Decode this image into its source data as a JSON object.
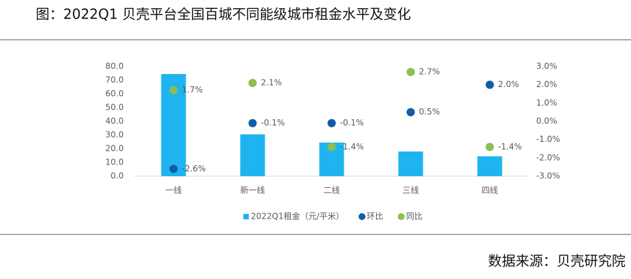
{
  "chart_data": {
    "type": "bar",
    "title": "图：2022Q1 贝壳平台全国百城不同能级城市租金水平及变化",
    "source": "数据来源：贝壳研究院",
    "categories": [
      "一线",
      "新一线",
      "二线",
      "三线",
      "四线"
    ],
    "series": [
      {
        "name": "2022Q1租金（元/平米）",
        "type": "bar",
        "color": "#1fb4f0",
        "values": [
          74.5,
          30.5,
          24.5,
          18,
          14.5
        ]
      },
      {
        "name": "环比",
        "type": "scatter",
        "axis": "y2",
        "color": "#0f5ea8",
        "values": [
          -2.6,
          -0.1,
          -0.1,
          0.5,
          2.0
        ],
        "value_labels": [
          "-2.6%",
          "-0.1%",
          "-0.1%",
          "0.5%",
          "2.0%"
        ]
      },
      {
        "name": "同比",
        "type": "scatter",
        "axis": "y2",
        "color": "#8cbf4e",
        "values": [
          1.7,
          2.1,
          -1.4,
          2.7,
          -1.4
        ],
        "value_labels": [
          "1.7%",
          "2.1%",
          "-1.4%",
          "2.7%",
          "-1.4%"
        ]
      }
    ],
    "ylim": [
      0,
      80
    ],
    "yticks": [
      {
        "value": 0,
        "label": "0.0"
      },
      {
        "value": 10,
        "label": "10.0"
      },
      {
        "value": 20,
        "label": "20.0"
      },
      {
        "value": 30,
        "label": "30.0"
      },
      {
        "value": 40,
        "label": "40.0"
      },
      {
        "value": 50,
        "label": "50.0"
      },
      {
        "value": 60,
        "label": "60.0"
      },
      {
        "value": 70,
        "label": "70.0"
      },
      {
        "value": 80,
        "label": "80.0"
      }
    ],
    "y2lim": [
      -3,
      3
    ],
    "y2ticks": [
      {
        "value": -3,
        "label": "-3.0%"
      },
      {
        "value": -2,
        "label": "-2.0%"
      },
      {
        "value": -1,
        "label": "-1.0%"
      },
      {
        "value": 0,
        "label": "0.0%"
      },
      {
        "value": 1,
        "label": "1.0%"
      },
      {
        "value": 2,
        "label": "2.0%"
      },
      {
        "value": 3,
        "label": "3.0%"
      }
    ]
  }
}
